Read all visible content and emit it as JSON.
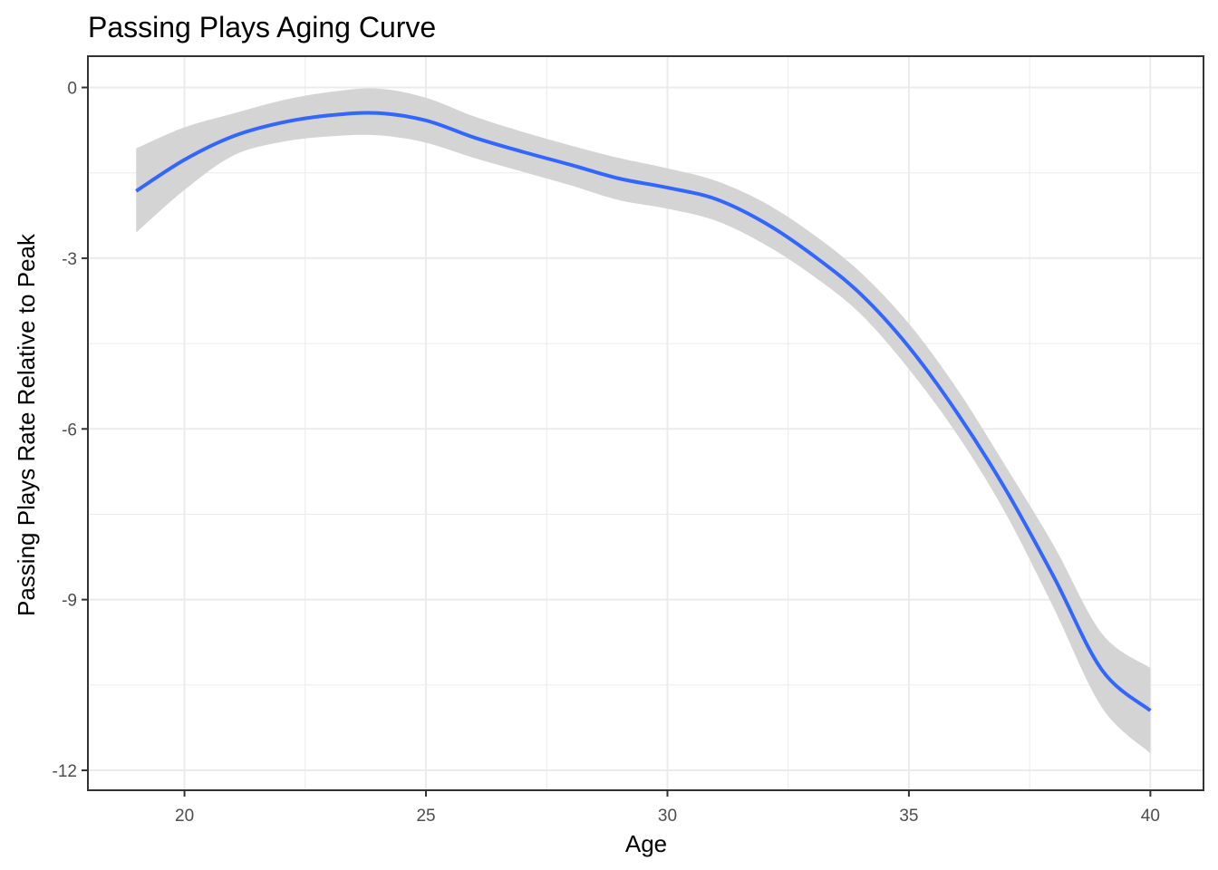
{
  "chart_data": {
    "type": "line",
    "title": "Passing Plays Aging Curve",
    "xlabel": "Age",
    "ylabel": "Passing Plays Rate Relative to Peak",
    "xlim": [
      18,
      41.1
    ],
    "ylim": [
      -12.35,
      0.55
    ],
    "x_ticks": [
      20,
      25,
      30,
      35,
      40
    ],
    "x_tick_labels": [
      "20",
      "25",
      "30",
      "35",
      "40"
    ],
    "y_ticks": [
      0,
      -3,
      -6,
      -9,
      -12
    ],
    "y_tick_labels": [
      "0",
      "-3",
      "-6",
      "-9",
      "-12"
    ],
    "x_minor": [
      22.5,
      27.5,
      32.5,
      37.5
    ],
    "y_minor": [
      -1.5,
      -4.5,
      -7.5,
      -10.5
    ],
    "grid": true,
    "legend": "none",
    "colors": {
      "line": "#3366ff",
      "ribbon": "#d4d4d4",
      "grid": "#ebebeb",
      "border": "#333333",
      "tick": "#333333"
    },
    "series": [
      {
        "x": [
          19,
          20,
          21,
          22,
          23,
          24,
          25,
          26,
          27,
          28,
          29,
          30,
          31,
          32,
          33,
          34,
          35,
          36,
          37,
          38,
          39,
          40
        ],
        "y": [
          -1.82,
          -1.27,
          -0.86,
          -0.62,
          -0.49,
          -0.45,
          -0.58,
          -0.88,
          -1.13,
          -1.36,
          -1.6,
          -1.76,
          -1.96,
          -2.37,
          -2.94,
          -3.63,
          -4.56,
          -5.72,
          -7.06,
          -8.6,
          -10.24,
          -10.95
        ],
        "lower": [
          -2.55,
          -1.8,
          -1.2,
          -0.96,
          -0.86,
          -0.84,
          -0.97,
          -1.24,
          -1.48,
          -1.72,
          -1.98,
          -2.13,
          -2.34,
          -2.75,
          -3.3,
          -3.98,
          -4.95,
          -6.1,
          -7.48,
          -9.15,
          -10.9,
          -11.7
        ],
        "upper": [
          -1.07,
          -0.7,
          -0.46,
          -0.23,
          -0.08,
          -0.02,
          -0.18,
          -0.51,
          -0.78,
          -1.02,
          -1.24,
          -1.42,
          -1.64,
          -2.02,
          -2.57,
          -3.25,
          -4.15,
          -5.3,
          -6.65,
          -8.05,
          -9.6,
          -10.2
        ]
      }
    ]
  }
}
